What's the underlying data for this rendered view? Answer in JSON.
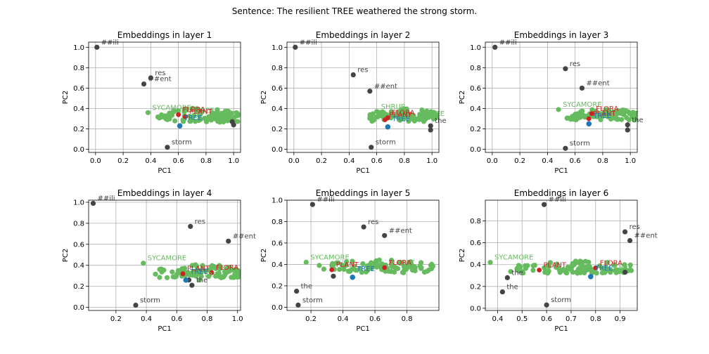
{
  "figure_title": "Sentence: The resilient TREE weathered the strong storm.",
  "colors": {
    "tokens": "#444444",
    "synonyms": "#66bb5e",
    "target": "#1f77b4",
    "highlight": "#cc2222"
  },
  "chart_data": [
    {
      "type": "scatter",
      "title": "Embeddings in layer 1",
      "xlabel": "PC1",
      "ylabel": "PC2",
      "xlim": [
        -0.05,
        1.05
      ],
      "ylim": [
        -0.03,
        1.05
      ],
      "xticks": [
        0.0,
        0.2,
        0.4,
        0.6,
        0.8,
        1.0
      ],
      "xticklabels": [
        "0.0",
        "0.2",
        "0.4",
        "0.6",
        "0.8",
        "1.0"
      ],
      "yticks": [
        0.0,
        0.2,
        0.4,
        0.6,
        0.8,
        1.0
      ],
      "yticklabels": [
        "0.0",
        "0.2",
        "0.4",
        "0.6",
        "0.8",
        "1.0"
      ],
      "grid": true,
      "tokens": [
        {
          "label": "##ili",
          "x": 0.01,
          "y": 1.0
        },
        {
          "label": "res",
          "x": 0.4,
          "y": 0.7
        },
        {
          "label": "##ent",
          "x": 0.35,
          "y": 0.64
        },
        {
          "label": "storm",
          "x": 0.52,
          "y": 0.02
        },
        {
          "label": "",
          "x": 0.99,
          "y": 0.27
        },
        {
          "label": "",
          "x": 1.0,
          "y": 0.24
        }
      ],
      "highlights": [
        {
          "label": "FLORA",
          "x": 0.6,
          "y": 0.34
        },
        {
          "label": "PLANT",
          "x": 0.65,
          "y": 0.32
        }
      ],
      "target": {
        "label": "TREE",
        "x": 0.61,
        "y": 0.23
      },
      "synonym_labels": [
        {
          "label": "SYCAMORE",
          "x": 0.38,
          "y": 0.36
        },
        {
          "label": "SHRUBTREE",
          "x": 0.52,
          "y": 0.33
        },
        {
          "label": "TREE",
          "x": 0.86,
          "y": 0.3
        }
      ],
      "synonym_cloud": {
        "x": [
          0.34,
          1.03
        ],
        "y": [
          0.23,
          0.41
        ],
        "count": 90
      }
    },
    {
      "type": "scatter",
      "title": "Embeddings in layer 2",
      "xlabel": "PC1",
      "ylabel": "PC2",
      "xlim": [
        -0.05,
        1.05
      ],
      "ylim": [
        -0.03,
        1.05
      ],
      "xticks": [
        0.0,
        0.2,
        0.4,
        0.6,
        0.8,
        1.0
      ],
      "xticklabels": [
        "0.0",
        "0.2",
        "0.4",
        "0.6",
        "0.8",
        "1.0"
      ],
      "yticks": [
        0.0,
        0.2,
        0.4,
        0.6,
        0.8,
        1.0
      ],
      "yticklabels": [
        "0.0",
        "0.2",
        "0.4",
        "0.6",
        "0.8",
        "1.0"
      ],
      "grid": true,
      "tokens": [
        {
          "label": "##ili",
          "x": 0.01,
          "y": 1.0
        },
        {
          "label": "res",
          "x": 0.43,
          "y": 0.73
        },
        {
          "label": "##ent",
          "x": 0.55,
          "y": 0.57
        },
        {
          "label": "storm",
          "x": 0.56,
          "y": 0.02
        },
        {
          "label": "the",
          "x": 0.99,
          "y": 0.23
        },
        {
          "label": "",
          "x": 0.99,
          "y": 0.19
        }
      ],
      "highlights": [
        {
          "label": "FLORA",
          "x": 0.68,
          "y": 0.31
        },
        {
          "label": "PLANT",
          "x": 0.66,
          "y": 0.29
        }
      ],
      "target": {
        "label": "TREE",
        "x": 0.68,
        "y": 0.22
      },
      "synonym_labels": [
        {
          "label": "SHRUB",
          "x": 0.6,
          "y": 0.37
        },
        {
          "label": "TREE",
          "x": 0.93,
          "y": 0.3
        }
      ],
      "synonym_cloud": {
        "x": [
          0.42,
          1.05
        ],
        "y": [
          0.24,
          0.4
        ],
        "count": 90
      }
    },
    {
      "type": "scatter",
      "title": "Embeddings in layer 3",
      "xlabel": "PC1",
      "ylabel": "PC2",
      "xlim": [
        -0.05,
        1.05
      ],
      "ylim": [
        -0.03,
        1.05
      ],
      "xticks": [
        0.0,
        0.2,
        0.4,
        0.6,
        0.8,
        1.0
      ],
      "xticklabels": [
        "0.0",
        "0.2",
        "0.4",
        "0.6",
        "0.8",
        "1.0"
      ],
      "yticks": [
        0.0,
        0.2,
        0.4,
        0.6,
        0.8,
        1.0
      ],
      "yticklabels": [
        "0.0",
        "0.2",
        "0.4",
        "0.6",
        "0.8",
        "1.0"
      ],
      "grid": true,
      "tokens": [
        {
          "label": "##ili",
          "x": 0.02,
          "y": 1.0
        },
        {
          "label": "res",
          "x": 0.53,
          "y": 0.79
        },
        {
          "label": "##ent",
          "x": 0.65,
          "y": 0.6
        },
        {
          "label": "storm",
          "x": 0.53,
          "y": 0.01
        },
        {
          "label": "the",
          "x": 0.98,
          "y": 0.24
        },
        {
          "label": "",
          "x": 0.98,
          "y": 0.19
        }
      ],
      "highlights": [
        {
          "label": "FLORA",
          "x": 0.72,
          "y": 0.35
        },
        {
          "label": "PLANT",
          "x": 0.7,
          "y": 0.3
        }
      ],
      "target": {
        "label": "TREE",
        "x": 0.7,
        "y": 0.25
      },
      "synonym_labels": [
        {
          "label": "SYCAMORE",
          "x": 0.48,
          "y": 0.39
        },
        {
          "label": "TREE",
          "x": 0.9,
          "y": 0.3
        }
      ],
      "synonym_cloud": {
        "x": [
          0.45,
          1.04
        ],
        "y": [
          0.26,
          0.4
        ],
        "count": 85
      }
    },
    {
      "type": "scatter",
      "title": "Embeddings in layer 4",
      "xlabel": "PC1",
      "ylabel": "PC2",
      "xlim": [
        0.02,
        1.02
      ],
      "ylim": [
        -0.03,
        1.02
      ],
      "xticks": [
        0.2,
        0.4,
        0.6,
        0.8,
        1.0
      ],
      "xticklabels": [
        "0.2",
        "0.4",
        "0.6",
        "0.8",
        "1.0"
      ],
      "yticks": [
        0.0,
        0.2,
        0.4,
        0.6,
        0.8,
        1.0
      ],
      "yticklabels": [
        "0.0",
        "0.2",
        "0.4",
        "0.6",
        "0.8",
        "1.0"
      ],
      "grid": true,
      "tokens": [
        {
          "label": "##ili",
          "x": 0.05,
          "y": 0.99
        },
        {
          "label": "res",
          "x": 0.69,
          "y": 0.77
        },
        {
          "label": "##ent",
          "x": 0.94,
          "y": 0.63
        },
        {
          "label": "storm",
          "x": 0.33,
          "y": 0.02
        },
        {
          "label": "the",
          "x": 0.7,
          "y": 0.21
        },
        {
          "label": "",
          "x": 0.68,
          "y": 0.26
        }
      ],
      "highlights": [
        {
          "label": "FLORA",
          "x": 0.83,
          "y": 0.33
        },
        {
          "label": "PLANT",
          "x": 0.64,
          "y": 0.32
        }
      ],
      "target": {
        "label": "TREE",
        "x": 0.66,
        "y": 0.26
      },
      "synonym_labels": [
        {
          "label": "SYCAMORE",
          "x": 0.38,
          "y": 0.42
        },
        {
          "label": "TREE",
          "x": 0.75,
          "y": 0.26
        }
      ],
      "synonym_cloud": {
        "x": [
          0.34,
          1.01
        ],
        "y": [
          0.25,
          0.41
        ],
        "count": 90
      }
    },
    {
      "type": "scatter",
      "title": "Embeddings in layer 5",
      "xlabel": "PC1",
      "ylabel": "PC2",
      "xlim": [
        0.05,
        1.0
      ],
      "ylim": [
        -0.03,
        1.0
      ],
      "xticks": [
        0.2,
        0.4,
        0.6,
        0.8
      ],
      "xticklabels": [
        "0.2",
        "0.4",
        "0.6",
        "0.8"
      ],
      "yticks": [
        0.0,
        0.2,
        0.4,
        0.6,
        0.8,
        1.0
      ],
      "yticklabels": [
        "0.0",
        "0.2",
        "0.4",
        "0.6",
        "0.8",
        "1.0"
      ],
      "grid": true,
      "tokens": [
        {
          "label": "##ili",
          "x": 0.21,
          "y": 0.96
        },
        {
          "label": "res",
          "x": 0.53,
          "y": 0.75
        },
        {
          "label": "##ent",
          "x": 0.66,
          "y": 0.67
        },
        {
          "label": "storm",
          "x": 0.12,
          "y": 0.02
        },
        {
          "label": "the",
          "x": 0.11,
          "y": 0.15
        },
        {
          "label": "",
          "x": 0.34,
          "y": 0.29
        }
      ],
      "highlights": [
        {
          "label": "FLORA",
          "x": 0.66,
          "y": 0.37
        },
        {
          "label": "PLANT",
          "x": 0.33,
          "y": 0.35
        }
      ],
      "target": {
        "label": "TREE",
        "x": 0.46,
        "y": 0.28
      },
      "synonym_labels": [
        {
          "label": "SYCAMORE",
          "x": 0.17,
          "y": 0.42
        },
        {
          "label": "OAK",
          "x": 0.73,
          "y": 0.37
        }
      ],
      "synonym_cloud": {
        "x": [
          0.1,
          0.97
        ],
        "y": [
          0.29,
          0.45
        ],
        "count": 95
      }
    },
    {
      "type": "scatter",
      "title": "Embeddings in layer 6",
      "xlabel": "PC1",
      "ylabel": "PC2",
      "xlim": [
        0.35,
        0.97
      ],
      "ylim": [
        -0.02,
        0.99
      ],
      "xticks": [
        0.4,
        0.5,
        0.6,
        0.7,
        0.8,
        0.9
      ],
      "xticklabels": [
        "0.4",
        "0.5",
        "0.6",
        "0.7",
        "0.8",
        "0.9"
      ],
      "yticks": [
        0.0,
        0.2,
        0.4,
        0.6,
        0.8
      ],
      "yticklabels": [
        "0.0",
        "0.2",
        "0.4",
        "0.6",
        "0.8"
      ],
      "grid": true,
      "tokens": [
        {
          "label": "##ili",
          "x": 0.59,
          "y": 0.95
        },
        {
          "label": "res",
          "x": 0.92,
          "y": 0.7
        },
        {
          "label": "##ent",
          "x": 0.94,
          "y": 0.62
        },
        {
          "label": "storm",
          "x": 0.6,
          "y": 0.03
        },
        {
          "label": "the",
          "x": 0.42,
          "y": 0.15
        },
        {
          "label": "the",
          "x": 0.44,
          "y": 0.28
        },
        {
          "label": "",
          "x": 0.92,
          "y": 0.33
        }
      ],
      "highlights": [
        {
          "label": "FLORA",
          "x": 0.8,
          "y": 0.37
        },
        {
          "label": "PLANT",
          "x": 0.57,
          "y": 0.35
        }
      ],
      "target": {
        "label": "TREE",
        "x": 0.78,
        "y": 0.29
      },
      "synonym_labels": [
        {
          "label": "SYCAMORE",
          "x": 0.37,
          "y": 0.42
        },
        {
          "label": "TREE",
          "x": 0.86,
          "y": 0.33
        }
      ],
      "synonym_cloud": {
        "x": [
          0.36,
          0.95
        ],
        "y": [
          0.29,
          0.44
        ],
        "count": 95
      }
    }
  ]
}
